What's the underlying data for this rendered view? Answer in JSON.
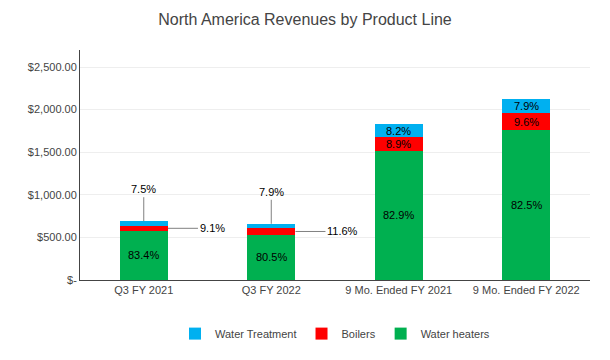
{
  "chart_data": {
    "type": "bar",
    "stacked": true,
    "title": "North America Revenues by Product Line",
    "categories": [
      "Q3 FY 2021",
      "Q3 FY 2022",
      "9 Mo. Ended FY 2021",
      "9 Mo. Ended FY 2022"
    ],
    "series": [
      {
        "name": "Water heaters",
        "color": "#00B050",
        "values": [
          575.5,
          531.3,
          1517.1,
          1757.3
        ],
        "labels": [
          "83.4%",
          "80.5%",
          "82.9%",
          "82.5%"
        ]
      },
      {
        "name": "Boilers",
        "color": "#FF0000",
        "values": [
          62.8,
          76.6,
          162.9,
          204.5
        ],
        "labels": [
          "9.1%",
          "11.6%",
          "8.9%",
          "9.6%"
        ]
      },
      {
        "name": "Water Treatment",
        "color": "#00B0F0",
        "values": [
          51.8,
          52.1,
          150.0,
          168.2
        ],
        "labels": [
          "7.5%",
          "7.9%",
          "8.2%",
          "7.9%"
        ]
      }
    ],
    "ylim": [
      0,
      2700
    ],
    "yticks": [
      {
        "value": 0,
        "label": "$-"
      },
      {
        "value": 500,
        "label": "$500.00"
      },
      {
        "value": 1000,
        "label": "$1,000.00"
      },
      {
        "value": 1500,
        "label": "$1,500.00"
      },
      {
        "value": 2000,
        "label": "$2,000.00"
      },
      {
        "value": 2500,
        "label": "$2,500.00"
      }
    ],
    "grid": true,
    "legend": "bottom"
  }
}
